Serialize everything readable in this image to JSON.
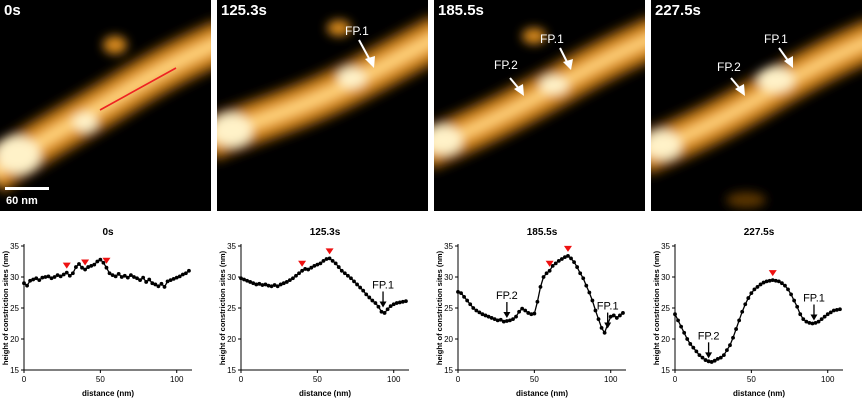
{
  "panels": [
    {
      "time": "0s",
      "scale_bar_label": "60 nm",
      "arrows": []
    },
    {
      "time": "125.3s",
      "arrows": [
        {
          "label": "FP.1"
        }
      ]
    },
    {
      "time": "185.5s",
      "arrows": [
        {
          "label": "FP.1"
        },
        {
          "label": "FP.2"
        }
      ]
    },
    {
      "time": "227.5s",
      "arrows": [
        {
          "label": "FP.1"
        },
        {
          "label": "FP.2"
        }
      ]
    }
  ],
  "colors": {
    "profile_line": "#ee2222",
    "peak_marker": "#ee1111",
    "afm_hot": "#ffd27a",
    "afm_mid": "#e09220",
    "afm_low": "#7a4a08"
  },
  "chart_data": [
    {
      "type": "line",
      "title": "0s",
      "xlabel": "distance (nm)",
      "ylabel": "height of constriction sites (nm)",
      "xlim": [
        0,
        110
      ],
      "ylim": [
        15,
        35
      ],
      "xticks": [
        0,
        50,
        100
      ],
      "yticks": [
        15,
        20,
        25,
        30,
        35
      ],
      "x": [
        0,
        2,
        4,
        6,
        8,
        10,
        12,
        14,
        16,
        18,
        20,
        22,
        24,
        26,
        28,
        30,
        32,
        34,
        36,
        38,
        40,
        42,
        44,
        46,
        48,
        50,
        52,
        54,
        56,
        58,
        60,
        62,
        64,
        66,
        68,
        70,
        72,
        74,
        76,
        78,
        80,
        82,
        84,
        86,
        88,
        90,
        92,
        94,
        96,
        98,
        100,
        102,
        104,
        106,
        108
      ],
      "y": [
        29.0,
        28.6,
        29.4,
        29.6,
        29.8,
        29.5,
        29.9,
        30.0,
        30.1,
        29.8,
        30.0,
        30.3,
        30.1,
        30.4,
        30.7,
        30.2,
        30.6,
        31.6,
        32.1,
        31.5,
        31.2,
        31.6,
        31.8,
        32.0,
        32.5,
        32.8,
        32.3,
        31.5,
        30.6,
        30.3,
        30.1,
        30.5,
        30.0,
        30.2,
        29.9,
        30.3,
        30.0,
        29.8,
        29.5,
        29.9,
        29.2,
        29.6,
        29.0,
        28.8,
        28.5,
        28.9,
        28.4,
        29.3,
        29.5,
        29.7,
        29.9,
        30.1,
        30.4,
        30.6,
        31.0
      ],
      "peaks": [
        {
          "x": 28,
          "y": 30.7
        },
        {
          "x": 40,
          "y": 31.2
        },
        {
          "x": 54,
          "y": 31.5
        }
      ],
      "annotations": []
    },
    {
      "type": "line",
      "title": "125.3s",
      "xlabel": "distance (nm)",
      "ylabel": "height of constriction sites (nm)",
      "xlim": [
        0,
        110
      ],
      "ylim": [
        15,
        35
      ],
      "xticks": [
        0,
        50,
        100
      ],
      "yticks": [
        15,
        20,
        25,
        30,
        35
      ],
      "x": [
        0,
        2,
        4,
        6,
        8,
        10,
        12,
        14,
        16,
        18,
        20,
        22,
        24,
        26,
        28,
        30,
        32,
        34,
        36,
        38,
        40,
        42,
        44,
        46,
        48,
        50,
        52,
        54,
        56,
        58,
        60,
        62,
        64,
        66,
        68,
        70,
        72,
        74,
        76,
        78,
        80,
        82,
        84,
        86,
        88,
        90,
        92,
        94,
        96,
        98,
        100,
        102,
        104,
        106,
        108
      ],
      "y": [
        29.8,
        29.6,
        29.4,
        29.2,
        29.0,
        28.8,
        28.9,
        28.7,
        28.8,
        28.6,
        28.5,
        28.7,
        28.5,
        28.8,
        29.0,
        29.2,
        29.5,
        29.8,
        30.2,
        30.6,
        31.0,
        31.3,
        31.2,
        31.5,
        31.8,
        32.0,
        32.2,
        32.6,
        32.9,
        33.0,
        32.6,
        32.2,
        31.6,
        31.0,
        30.6,
        30.2,
        29.8,
        29.3,
        28.8,
        28.3,
        27.8,
        27.2,
        26.7,
        26.2,
        25.8,
        25.2,
        24.4,
        24.2,
        24.8,
        25.3,
        25.6,
        25.8,
        25.9,
        26.0,
        26.1
      ],
      "peaks": [
        {
          "x": 40,
          "y": 31.0
        },
        {
          "x": 58,
          "y": 33.0
        }
      ],
      "annotations": [
        {
          "label": "FP.1",
          "x": 93,
          "y": 24.6
        }
      ]
    },
    {
      "type": "line",
      "title": "185.5s",
      "xlabel": "distance (nm)",
      "ylabel": "height of constriction sites (nm)",
      "xlim": [
        0,
        110
      ],
      "ylim": [
        15,
        35
      ],
      "xticks": [
        0,
        50,
        100
      ],
      "yticks": [
        15,
        20,
        25,
        30,
        35
      ],
      "x": [
        0,
        2,
        4,
        6,
        8,
        10,
        12,
        14,
        16,
        18,
        20,
        22,
        24,
        26,
        28,
        30,
        32,
        34,
        36,
        38,
        40,
        42,
        44,
        46,
        48,
        50,
        52,
        54,
        56,
        58,
        60,
        62,
        64,
        66,
        68,
        70,
        72,
        74,
        76,
        78,
        80,
        82,
        84,
        86,
        88,
        90,
        92,
        94,
        96,
        98,
        100,
        102,
        104,
        106,
        108
      ],
      "y": [
        27.6,
        27.4,
        26.8,
        26.2,
        25.6,
        25.0,
        24.6,
        24.3,
        24.0,
        23.8,
        23.6,
        23.4,
        23.2,
        23.0,
        23.1,
        22.8,
        22.9,
        23.0,
        23.2,
        23.6,
        24.4,
        24.9,
        24.6,
        24.2,
        24.0,
        24.1,
        26.0,
        28.4,
        30.0,
        30.6,
        31.0,
        31.8,
        32.2,
        32.6,
        32.9,
        33.2,
        33.4,
        33.0,
        32.4,
        31.6,
        30.6,
        29.8,
        28.6,
        27.5,
        26.2,
        24.6,
        23.2,
        21.8,
        21.0,
        22.4,
        23.6,
        23.8,
        23.4,
        23.8,
        24.2
      ],
      "peaks": [
        {
          "x": 60,
          "y": 31.0
        },
        {
          "x": 72,
          "y": 33.4
        }
      ],
      "annotations": [
        {
          "label": "FP.2",
          "x": 32,
          "y": 22.9
        },
        {
          "label": "FP.1",
          "x": 98,
          "y": 21.2
        }
      ]
    },
    {
      "type": "line",
      "title": "227.5s",
      "xlabel": "distance (nm)",
      "ylabel": "height of constriction sites (nm)",
      "xlim": [
        0,
        110
      ],
      "ylim": [
        15,
        35
      ],
      "xticks": [
        0,
        50,
        100
      ],
      "yticks": [
        15,
        20,
        25,
        30,
        35
      ],
      "x": [
        0,
        2,
        4,
        6,
        8,
        10,
        12,
        14,
        16,
        18,
        20,
        22,
        24,
        26,
        28,
        30,
        32,
        34,
        36,
        38,
        40,
        42,
        44,
        46,
        48,
        50,
        52,
        54,
        56,
        58,
        60,
        62,
        64,
        66,
        68,
        70,
        72,
        74,
        76,
        78,
        80,
        82,
        84,
        86,
        88,
        90,
        92,
        94,
        96,
        98,
        100,
        102,
        104,
        106,
        108
      ],
      "y": [
        24.0,
        23.0,
        22.0,
        21.0,
        20.0,
        19.2,
        18.6,
        18.0,
        17.4,
        17.0,
        16.6,
        16.4,
        16.3,
        16.5,
        16.8,
        17.0,
        17.4,
        18.2,
        19.0,
        20.2,
        21.6,
        23.0,
        24.4,
        25.6,
        26.6,
        27.4,
        28.0,
        28.4,
        28.8,
        29.1,
        29.3,
        29.4,
        29.5,
        29.4,
        29.3,
        29.0,
        28.6,
        28.0,
        27.2,
        26.2,
        25.2,
        24.0,
        23.2,
        22.8,
        22.6,
        22.5,
        22.6,
        22.8,
        23.2,
        23.6,
        24.0,
        24.3,
        24.6,
        24.7,
        24.8
      ],
      "peaks": [
        {
          "x": 64,
          "y": 29.5
        }
      ],
      "annotations": [
        {
          "label": "FP.2",
          "x": 22,
          "y": 16.4
        },
        {
          "label": "FP.1",
          "x": 91,
          "y": 22.5
        }
      ]
    }
  ]
}
